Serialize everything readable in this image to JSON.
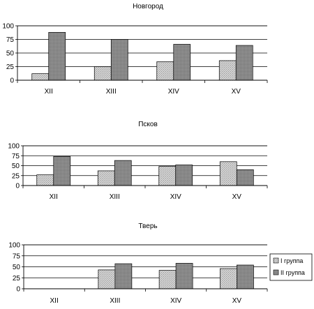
{
  "chart_data": [
    {
      "type": "bar",
      "title": "Новгород",
      "categories": [
        "XII",
        "XIII",
        "XIV",
        "XV"
      ],
      "ylim": [
        0,
        100
      ],
      "yticks": [
        0,
        25,
        50,
        75,
        100
      ],
      "grid": true,
      "series": [
        {
          "name": "I группа",
          "values": [
            12,
            25,
            34,
            36
          ]
        },
        {
          "name": "II группа",
          "values": [
            88,
            75,
            66,
            64
          ]
        }
      ]
    },
    {
      "type": "bar",
      "title": "Псков",
      "categories": [
        "XII",
        "XIII",
        "XIV",
        "XV"
      ],
      "ylim": [
        0,
        100
      ],
      "yticks": [
        0,
        25,
        50,
        75,
        100
      ],
      "grid": true,
      "series": [
        {
          "name": "I группа",
          "values": [
            27,
            37,
            48,
            60
          ]
        },
        {
          "name": "II группа",
          "values": [
            73,
            63,
            52,
            40
          ]
        }
      ]
    },
    {
      "type": "bar",
      "title": "Тверь",
      "categories": [
        "XII",
        "XIII",
        "XIV",
        "XV"
      ],
      "ylim": [
        0,
        100
      ],
      "yticks": [
        0,
        25,
        50,
        75,
        100
      ],
      "grid": true,
      "legend": "right",
      "series": [
        {
          "name": "I группа",
          "values": [
            null,
            43,
            42,
            46
          ]
        },
        {
          "name": "II группа",
          "values": [
            null,
            57,
            58,
            54
          ]
        }
      ]
    }
  ],
  "colors": {
    "series1_fill": "#c8c8c8",
    "series2_fill": "#8c8c8c",
    "gridline": "#000000",
    "axis": "#000000",
    "background": "#ffffff"
  },
  "legend": {
    "items": [
      "I группа",
      "II группа"
    ]
  }
}
